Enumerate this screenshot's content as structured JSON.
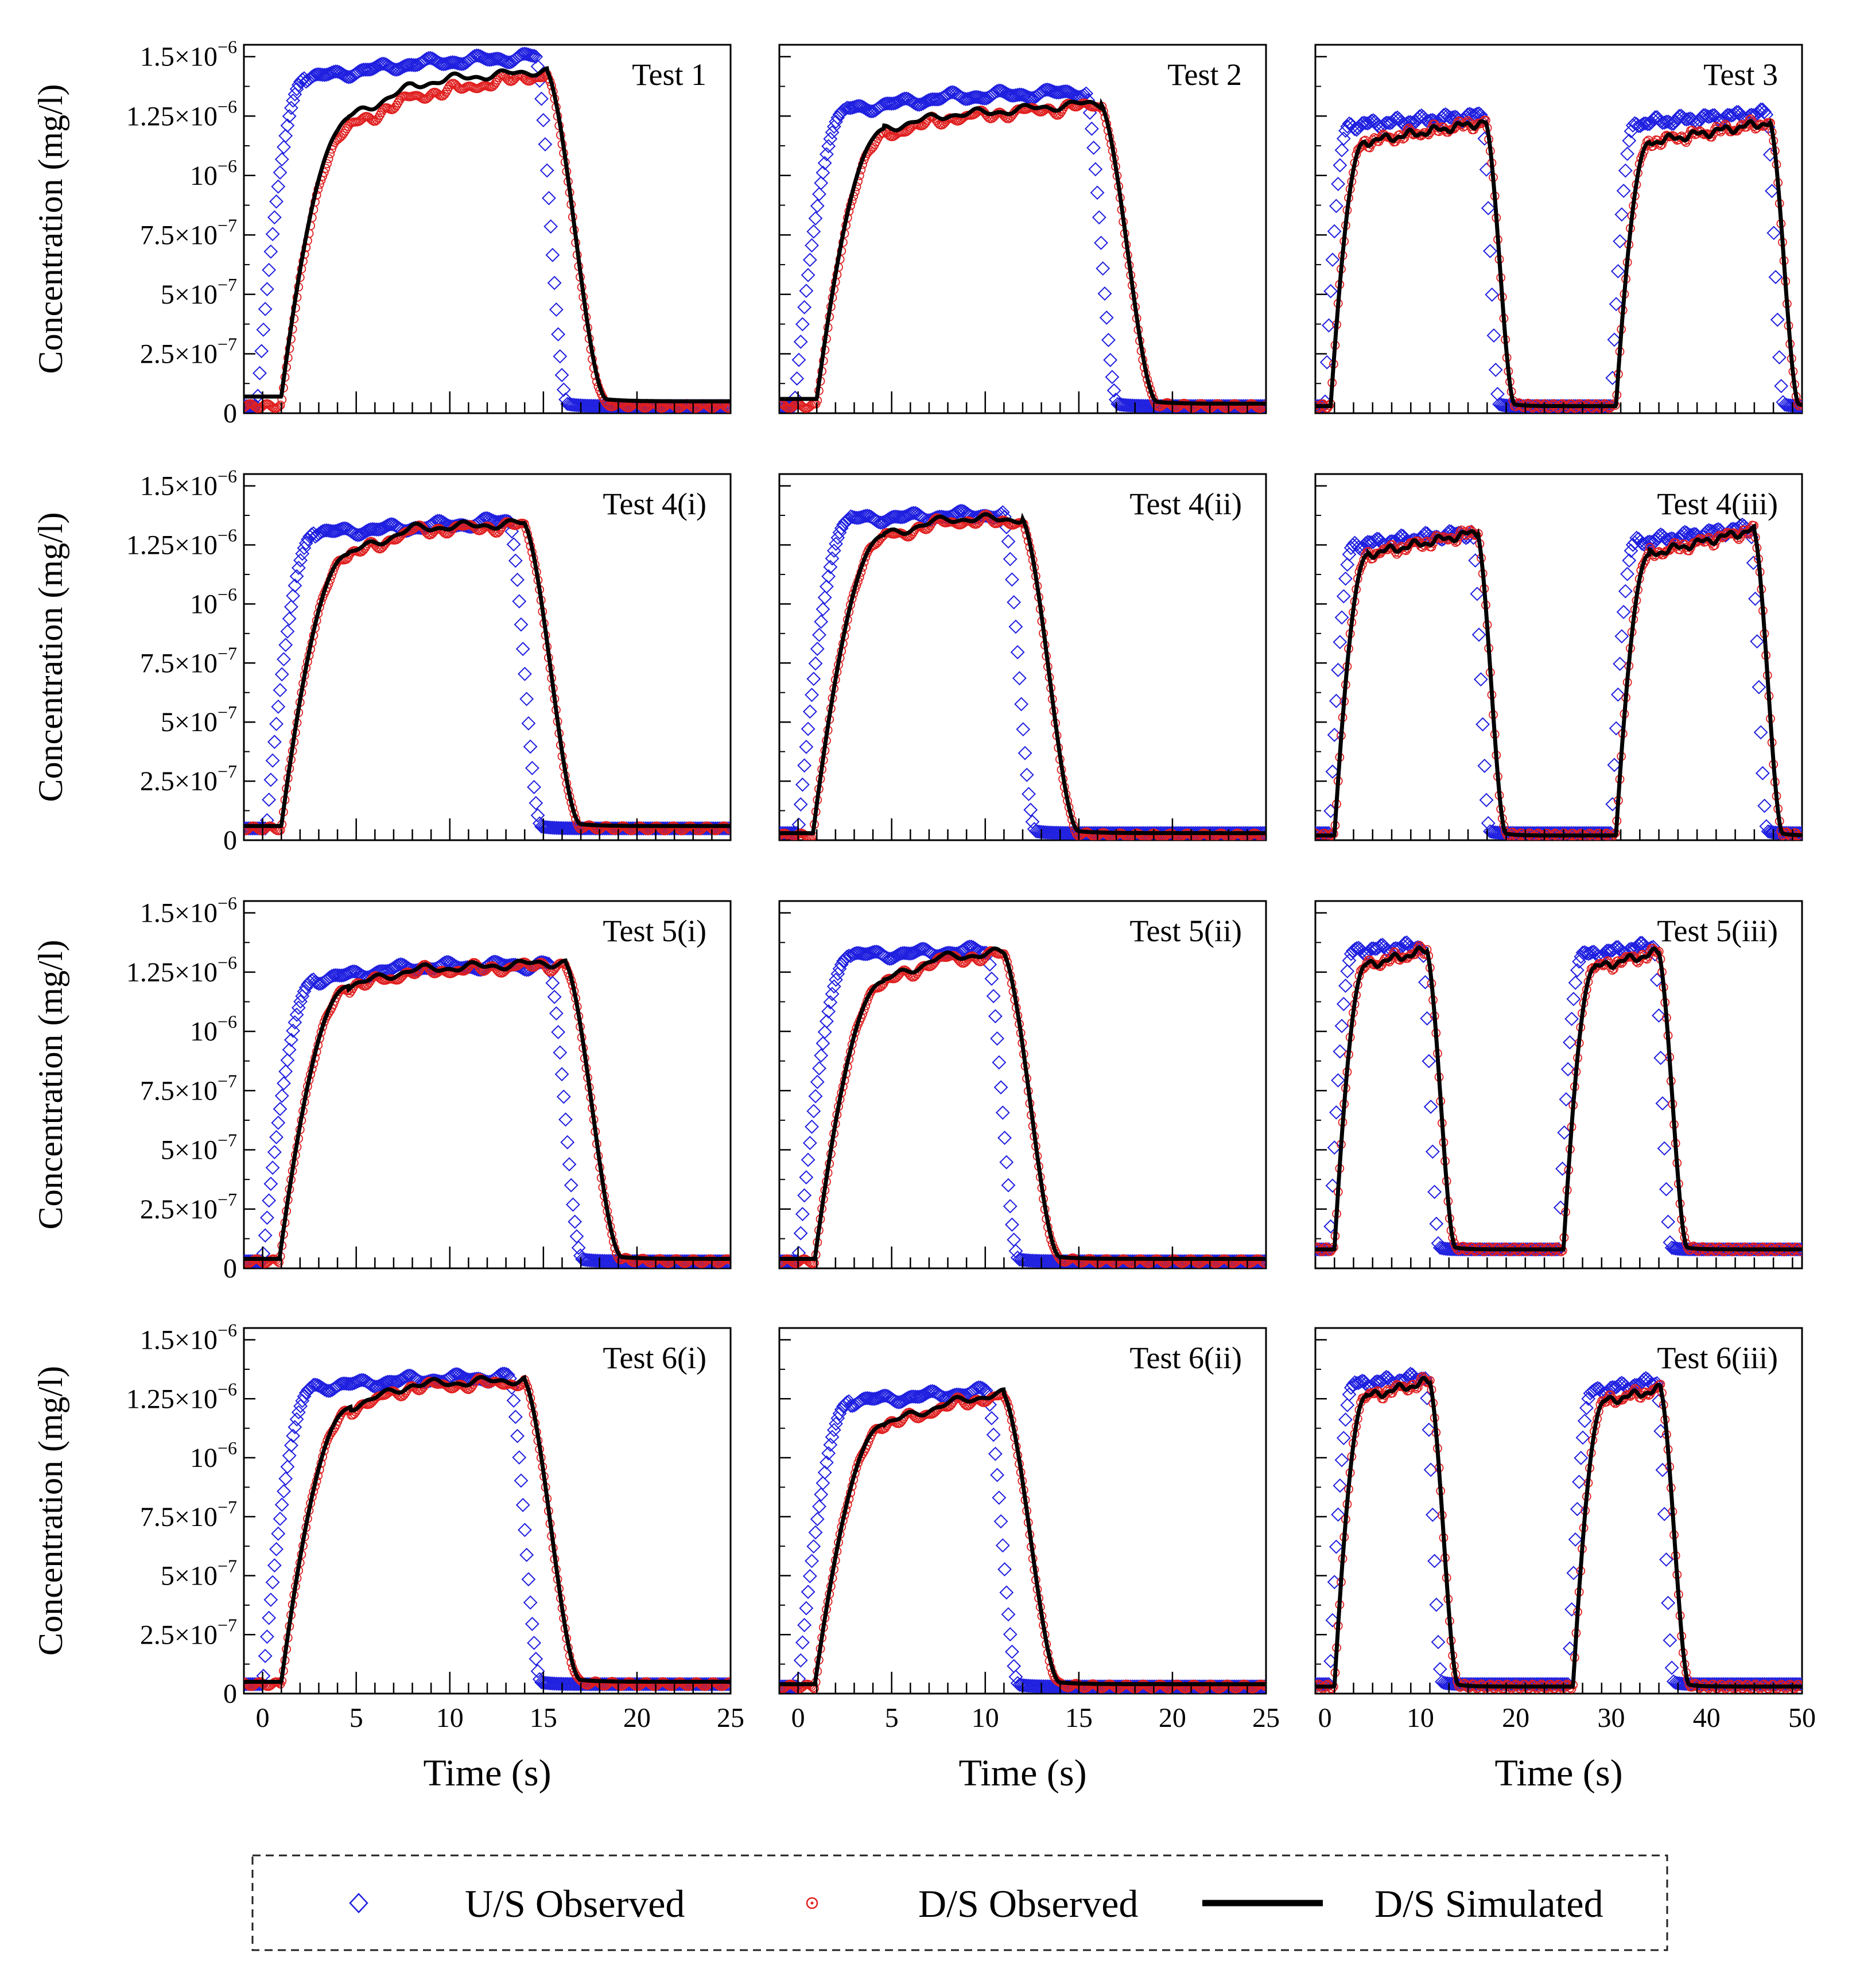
{
  "figure": {
    "y_label": "Concentration (mg/l)",
    "x_label": "Time (s)",
    "y_tick_labels": [
      {
        "value": 0,
        "base": "0",
        "exp": ""
      },
      {
        "value": 2.5e-07,
        "base": "2.5×10",
        "exp": "−7"
      },
      {
        "value": 5e-07,
        "base": "5×10",
        "exp": "−7"
      },
      {
        "value": 7.5e-07,
        "base": "7.5×10",
        "exp": "−7"
      },
      {
        "value": 1e-06,
        "base": "10",
        "exp": "−6"
      },
      {
        "value": 1.25e-06,
        "base": "1.25×10",
        "exp": "−6"
      },
      {
        "value": 1.5e-06,
        "base": "1.5×10",
        "exp": "−6"
      }
    ],
    "x_ticks_short": [
      0,
      5,
      10,
      15,
      20,
      25
    ],
    "x_ticks_long": [
      0,
      10,
      20,
      30,
      40,
      50
    ]
  },
  "legend": {
    "items": [
      {
        "label": "U/S Observed",
        "marker": "diamond",
        "color": "#1f1fe0"
      },
      {
        "label": "D/S Observed",
        "marker": "circle",
        "color": "#e01f1f"
      },
      {
        "label": "D/S Simulated",
        "marker": "line",
        "color": "#000000"
      }
    ]
  },
  "chart_data": [
    {
      "type": "line",
      "title": "Test 1",
      "xlim": [
        -1,
        25
      ],
      "ylim": [
        0,
        1.55e-06
      ],
      "xlabel": "",
      "ylabel": "Concentration (mg/l)",
      "us": {
        "base": 3e-08,
        "start": -0.3,
        "rise": 2.6,
        "end": 14.6,
        "fall": 1.7,
        "plateau": [
          [
            2.5,
            1.41e-06
          ],
          [
            8,
            1.47e-06
          ],
          [
            14.5,
            1.5e-06
          ]
        ]
      },
      "ds": {
        "base": 3e-08,
        "start": 1.0,
        "rise": 3.6,
        "end": 15.2,
        "fall": 3.2,
        "plateau": [
          [
            4,
            1.18e-06
          ],
          [
            8,
            1.33e-06
          ],
          [
            14.5,
            1.42e-06
          ]
        ]
      },
      "sim_offset": [
        [
          3,
          4e-08
        ],
        [
          10,
          5e-08
        ],
        [
          14,
          2e-08
        ]
      ]
    },
    {
      "type": "line",
      "title": "Test 2",
      "xlim": [
        -1,
        25
      ],
      "ylim": [
        0,
        1.55e-06
      ],
      "xlabel": "",
      "ylabel": "",
      "us": {
        "base": 3e-08,
        "start": -0.2,
        "rise": 2.8,
        "end": 15.4,
        "fall": 1.7,
        "plateau": [
          [
            3,
            1.28e-06
          ],
          [
            8,
            1.33e-06
          ],
          [
            15,
            1.35e-06
          ]
        ]
      },
      "ds": {
        "base": 3e-08,
        "start": 1.0,
        "rise": 3.6,
        "end": 16.2,
        "fall": 3.0,
        "plateau": [
          [
            4,
            1.16e-06
          ],
          [
            8,
            1.24e-06
          ],
          [
            15,
            1.29e-06
          ]
        ]
      },
      "sim_offset": [
        [
          3,
          3e-08
        ],
        [
          10,
          1e-08
        ]
      ]
    },
    {
      "type": "line",
      "title": "Test 3",
      "xlim": [
        -1,
        50
      ],
      "ylim": [
        0,
        1.55e-06
      ],
      "xlabel": "",
      "ylabel": "",
      "us": {
        "base": 3e-08,
        "pulses": [
          {
            "start": 0.0,
            "rise": 2.5,
            "end": 16.5,
            "fall": 1.8,
            "plateau": [
              [
                2.5,
                1.21e-06
              ],
              [
                16,
                1.25e-06
              ]
            ]
          },
          {
            "start": 30.0,
            "rise": 2.5,
            "end": 46.3,
            "fall": 1.8,
            "plateau": [
              [
                32.5,
                1.22e-06
              ],
              [
                46,
                1.26e-06
              ]
            ]
          }
        ]
      },
      "ds": {
        "base": 3e-08,
        "pulses": [
          {
            "start": 0.6,
            "rise": 3.5,
            "end": 16.9,
            "fall": 3.0,
            "plateau": [
              [
                4,
                1.14e-06
              ],
              [
                16,
                1.22e-06
              ]
            ]
          },
          {
            "start": 30.5,
            "rise": 3.5,
            "end": 46.7,
            "fall": 3.0,
            "plateau": [
              [
                34,
                1.14e-06
              ],
              [
                46,
                1.22e-06
              ]
            ]
          }
        ]
      }
    },
    {
      "type": "line",
      "title": "Test 4(i)",
      "xlim": [
        -1,
        25
      ],
      "ylim": [
        0,
        1.55e-06
      ],
      "xlabel": "",
      "ylabel": "Concentration (mg/l)",
      "us": {
        "base": 5e-08,
        "start": 0.2,
        "rise": 2.6,
        "end": 13.2,
        "fall": 1.7,
        "plateau": [
          [
            3,
            1.3e-06
          ],
          [
            13,
            1.35e-06
          ]
        ]
      },
      "ds": {
        "base": 5e-08,
        "start": 1.0,
        "rise": 3.6,
        "end": 14.0,
        "fall": 3.0,
        "plateau": [
          [
            4.5,
            1.2e-06
          ],
          [
            8,
            1.31e-06
          ],
          [
            13.5,
            1.33e-06
          ]
        ]
      },
      "sim_offset": [
        [
          3,
          1e-08
        ]
      ]
    },
    {
      "type": "line",
      "title": "Test 4(ii)",
      "xlim": [
        -1,
        25
      ],
      "ylim": [
        0,
        1.55e-06
      ],
      "xlabel": "",
      "ylabel": "",
      "us": {
        "base": 3e-08,
        "start": 0.0,
        "rise": 2.8,
        "end": 11.0,
        "fall": 1.7,
        "plateau": [
          [
            3,
            1.36e-06
          ],
          [
            11,
            1.38e-06
          ]
        ]
      },
      "ds": {
        "base": 2e-08,
        "start": 0.8,
        "rise": 3.8,
        "end": 12.0,
        "fall": 3.0,
        "plateau": [
          [
            4.5,
            1.28e-06
          ],
          [
            8,
            1.35e-06
          ],
          [
            11.5,
            1.35e-06
          ]
        ]
      },
      "sim_offset": [
        [
          3,
          1e-08
        ]
      ]
    },
    {
      "type": "line",
      "title": "Test 4(iii)",
      "xlim": [
        -1,
        50
      ],
      "ylim": [
        0,
        1.55e-06
      ],
      "xlabel": "",
      "ylabel": "",
      "us": {
        "base": 3e-08,
        "pulses": [
          {
            "start": 0.5,
            "rise": 2.5,
            "end": 15.5,
            "fall": 1.8,
            "plateau": [
              [
                3,
                1.25e-06
              ],
              [
                15,
                1.3e-06
              ]
            ]
          },
          {
            "start": 30.0,
            "rise": 2.5,
            "end": 44.6,
            "fall": 1.8,
            "plateau": [
              [
                32.5,
                1.26e-06
              ],
              [
                44,
                1.32e-06
              ]
            ]
          }
        ]
      },
      "ds": {
        "base": 2e-08,
        "pulses": [
          {
            "start": 1.0,
            "rise": 3.5,
            "end": 16.0,
            "fall": 3.0,
            "plateau": [
              [
                4.5,
                1.21e-06
              ],
              [
                15.5,
                1.3e-06
              ]
            ]
          },
          {
            "start": 30.5,
            "rise": 3.5,
            "end": 45.0,
            "fall": 3.0,
            "plateau": [
              [
                34,
                1.21e-06
              ],
              [
                44.5,
                1.31e-06
              ]
            ]
          }
        ]
      }
    },
    {
      "type": "line",
      "title": "Test 5(i)",
      "xlim": [
        -1,
        25
      ],
      "ylim": [
        0,
        1.55e-06
      ],
      "xlabel": "",
      "ylabel": "Concentration (mg/l)",
      "us": {
        "base": 3e-08,
        "start": 0.0,
        "rise": 2.8,
        "end": 15.3,
        "fall": 1.8,
        "plateau": [
          [
            3,
            1.22e-06
          ],
          [
            8,
            1.27e-06
          ],
          [
            15,
            1.28e-06
          ]
        ]
      },
      "ds": {
        "base": 3e-08,
        "start": 0.9,
        "rise": 3.7,
        "end": 16.2,
        "fall": 3.0,
        "plateau": [
          [
            4.5,
            1.18e-06
          ],
          [
            8,
            1.25e-06
          ],
          [
            15.5,
            1.28e-06
          ]
        ]
      },
      "sim_offset": [
        [
          3,
          1e-08
        ]
      ]
    },
    {
      "type": "line",
      "title": "Test 5(ii)",
      "xlim": [
        -1,
        25
      ],
      "ylim": [
        0,
        1.55e-06
      ],
      "xlabel": "",
      "ylabel": "",
      "us": {
        "base": 3e-08,
        "start": 0.0,
        "rise": 2.8,
        "end": 10.1,
        "fall": 1.7,
        "plateau": [
          [
            3,
            1.32e-06
          ],
          [
            10,
            1.34e-06
          ]
        ]
      },
      "ds": {
        "base": 3e-08,
        "start": 0.9,
        "rise": 3.7,
        "end": 11.0,
        "fall": 3.0,
        "plateau": [
          [
            4.5,
            1.2e-06
          ],
          [
            7.5,
            1.3e-06
          ],
          [
            10.5,
            1.32e-06
          ]
        ]
      },
      "sim_offset": [
        [
          3,
          1e-08
        ]
      ]
    },
    {
      "type": "line",
      "title": "Test 5(iii)",
      "xlim": [
        -1,
        50
      ],
      "ylim": [
        0,
        1.55e-06
      ],
      "xlabel": "",
      "ylabel": "",
      "us": {
        "base": 8e-08,
        "pulses": [
          {
            "start": 0.5,
            "rise": 2.5,
            "end": 10.2,
            "fall": 1.8,
            "plateau": [
              [
                3,
                1.34e-06
              ],
              [
                10,
                1.36e-06
              ]
            ]
          },
          {
            "start": 24.5,
            "rise": 2.5,
            "end": 34.5,
            "fall": 1.8,
            "plateau": [
              [
                27,
                1.32e-06
              ],
              [
                34,
                1.36e-06
              ]
            ]
          }
        ]
      },
      "ds": {
        "base": 8e-08,
        "pulses": [
          {
            "start": 1.0,
            "rise": 3.3,
            "end": 10.7,
            "fall": 3.0,
            "plateau": [
              [
                4.5,
                1.28e-06
              ],
              [
                10.5,
                1.34e-06
              ]
            ]
          },
          {
            "start": 25.0,
            "rise": 3.3,
            "end": 35.0,
            "fall": 3.0,
            "plateau": [
              [
                28.5,
                1.27e-06
              ],
              [
                34.5,
                1.33e-06
              ]
            ]
          }
        ]
      }
    },
    {
      "type": "line",
      "title": "Test 6(i)",
      "xlim": [
        -1,
        25
      ],
      "ylim": [
        0,
        1.55e-06
      ],
      "xlabel": "Time (s)",
      "ylabel": "Concentration (mg/l)",
      "us": {
        "base": 4e-08,
        "start": 0.0,
        "rise": 2.7,
        "end": 13.2,
        "fall": 1.7,
        "plateau": [
          [
            3,
            1.3e-06
          ],
          [
            8,
            1.33e-06
          ],
          [
            13,
            1.34e-06
          ]
        ]
      },
      "ds": {
        "base": 4e-08,
        "start": 1.0,
        "rise": 3.7,
        "end": 14.0,
        "fall": 3.0,
        "plateau": [
          [
            4.5,
            1.2e-06
          ],
          [
            8,
            1.3e-06
          ],
          [
            13.5,
            1.32e-06
          ]
        ]
      },
      "sim_offset": [
        [
          3,
          1e-08
        ]
      ]
    },
    {
      "type": "line",
      "title": "Test 6(ii)",
      "xlim": [
        -1,
        25
      ],
      "ylim": [
        0,
        1.55e-06
      ],
      "xlabel": "Time (s)",
      "ylabel": "",
      "us": {
        "base": 3e-08,
        "start": 0.0,
        "rise": 2.8,
        "end": 10.1,
        "fall": 1.7,
        "plateau": [
          [
            3,
            1.24e-06
          ],
          [
            10,
            1.28e-06
          ]
        ]
      },
      "ds": {
        "base": 3e-08,
        "start": 0.9,
        "rise": 3.7,
        "end": 11.0,
        "fall": 3.0,
        "plateau": [
          [
            4.5,
            1.13e-06
          ],
          [
            8,
            1.22e-06
          ],
          [
            10.5,
            1.26e-06
          ]
        ]
      },
      "sim_offset": [
        [
          3,
          1e-08
        ]
      ]
    },
    {
      "type": "line",
      "title": "Test 6(iii)",
      "xlim": [
        -1,
        50
      ],
      "ylim": [
        0,
        1.55e-06
      ],
      "xlabel": "Time (s)",
      "ylabel": "",
      "us": {
        "base": 4e-08,
        "pulses": [
          {
            "start": 0.5,
            "rise": 2.5,
            "end": 10.5,
            "fall": 1.8,
            "plateau": [
              [
                3,
                1.31e-06
              ],
              [
                10,
                1.34e-06
              ]
            ]
          },
          {
            "start": 25.5,
            "rise": 2.5,
            "end": 34.8,
            "fall": 1.8,
            "plateau": [
              [
                28,
                1.28e-06
              ],
              [
                34,
                1.32e-06
              ]
            ]
          }
        ]
      },
      "ds": {
        "base": 3e-08,
        "pulses": [
          {
            "start": 1.0,
            "rise": 3.3,
            "end": 11.0,
            "fall": 3.0,
            "plateau": [
              [
                4.5,
                1.26e-06
              ],
              [
                10.5,
                1.32e-06
              ]
            ]
          },
          {
            "start": 26.0,
            "rise": 3.3,
            "end": 35.2,
            "fall": 3.0,
            "plateau": [
              [
                29.5,
                1.24e-06
              ],
              [
                35,
                1.29e-06
              ]
            ]
          }
        ]
      }
    }
  ]
}
